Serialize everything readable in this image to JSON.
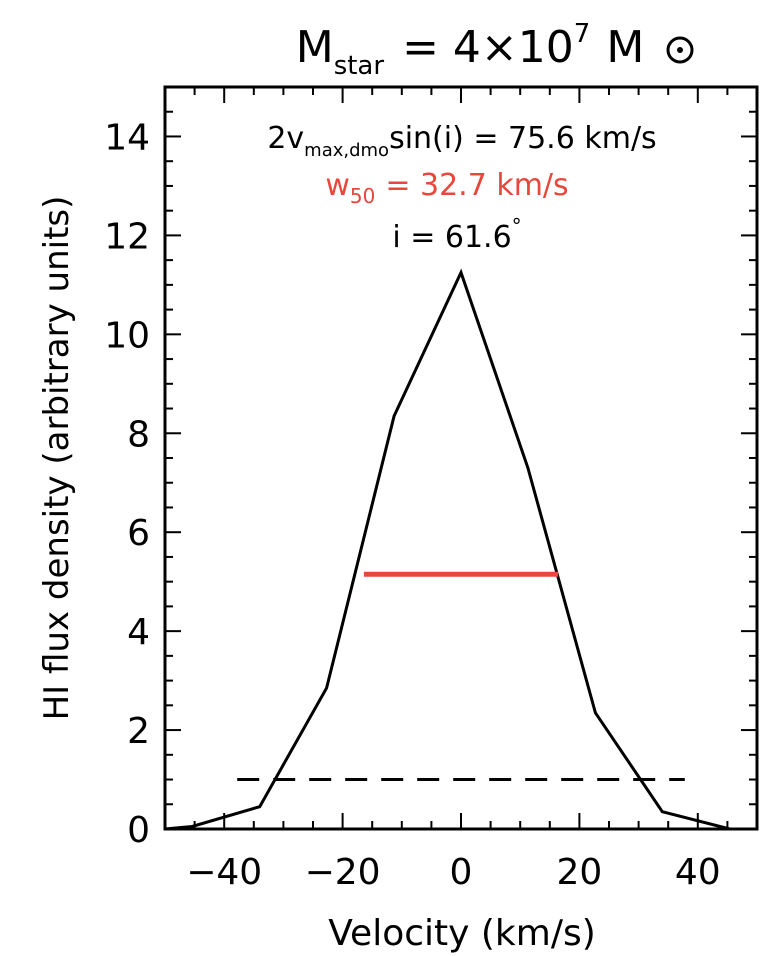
{
  "chart_data": {
    "type": "line",
    "title": {
      "prefix": "M",
      "sub": "star",
      "middle": "= 4×10",
      "sup": "7",
      "suffix": "M"
    },
    "xlabel": "Velocity (km/s)",
    "ylabel": "HI flux density (arbitrary units)",
    "xlim": [
      -50,
      50
    ],
    "ylim": [
      0,
      15
    ],
    "xticks": [
      -40,
      -20,
      0,
      20,
      40
    ],
    "yticks": [
      0,
      2,
      4,
      6,
      8,
      10,
      12,
      14
    ],
    "grid": false,
    "annotations": {
      "line1": {
        "a": "2v",
        "sub": "max,dmo",
        "b": "sin(i) = 75.6 km/s"
      },
      "line2": {
        "a": "w",
        "sub": "50",
        "b": "= 32.7 km/s"
      },
      "line3": {
        "a": "i = 61.6",
        "sup": "°"
      }
    },
    "series": [
      {
        "style": "solid",
        "color": "#000000",
        "x": [
          -50,
          -45.4,
          -34,
          -22.7,
          -11.3,
          0,
          11.3,
          22.7,
          34,
          45.4,
          50
        ],
        "y": [
          0,
          0.05,
          0.45,
          2.85,
          8.35,
          11.25,
          7.3,
          2.35,
          0.35,
          0,
          0
        ]
      },
      {
        "style": "dashed",
        "color": "#000000",
        "x": [
          -37.8,
          37.8
        ],
        "y": [
          1.0,
          1.0
        ]
      },
      {
        "style": "solid",
        "color": "#e8473c",
        "x": [
          -16.4,
          16.4
        ],
        "y": [
          5.15,
          5.15
        ]
      }
    ],
    "colors": {
      "highlight": "#e8473c",
      "axis": "#000000"
    }
  }
}
